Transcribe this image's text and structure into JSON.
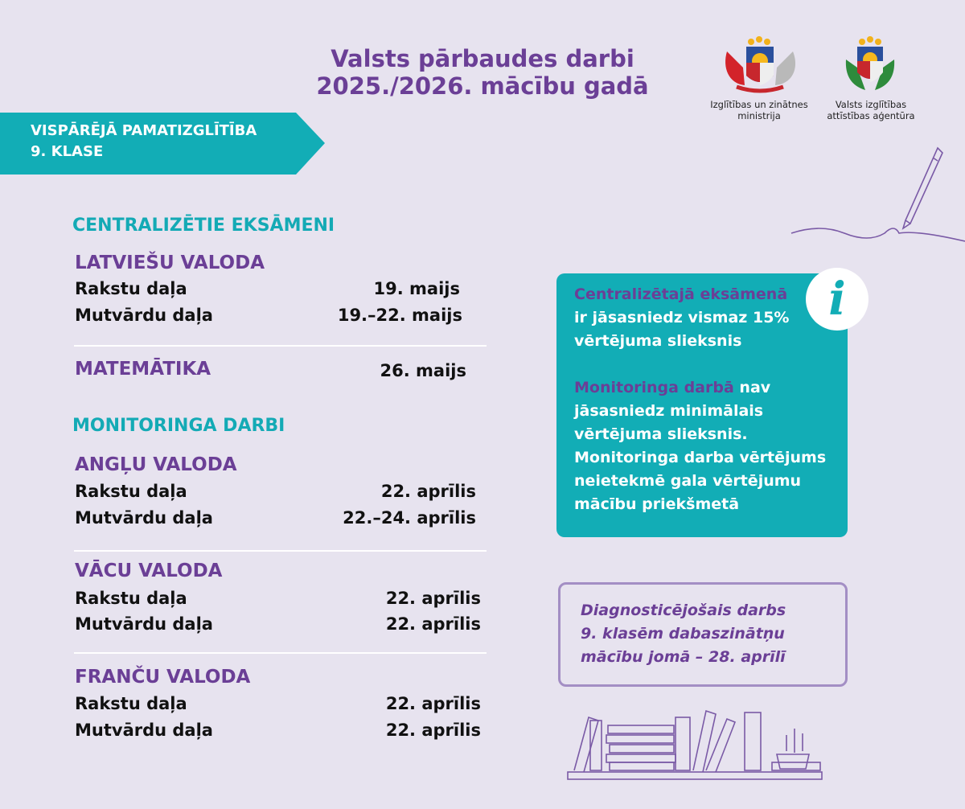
{
  "header": {
    "title_line1": "Valsts pārbaudes darbi",
    "title_line2": "2025./2026. mācību gadā"
  },
  "logos": [
    {
      "name": "Izglītības un zinātnes ministrija",
      "line1": "Izglītības un zinātnes",
      "line2": "ministrija"
    },
    {
      "name": "Valsts izglītības attīstības aģentūra",
      "line1": "Valsts izglītības",
      "line2": "attīstības aģentūra"
    }
  ],
  "banner": {
    "line1": "VISPĀRĒJĀ PAMATIZGLĪTĪBA",
    "line2": "9. KLASE"
  },
  "centralized": {
    "heading": "CENTRALIZĒTIE EKSĀMENI",
    "latvian": {
      "title": "LATVIEŠU VALODA",
      "rows": [
        {
          "label": "Rakstu daļa",
          "date": "19. maijs"
        },
        {
          "label": "Mutvārdu daļa",
          "date": "19.–22. maijs"
        }
      ]
    },
    "math": {
      "title": "MATEMĀTIKA",
      "date": "26. maijs"
    }
  },
  "monitoring": {
    "heading": "MONITORINGA DARBI",
    "english": {
      "title": "ANGĻU VALODA",
      "rows": [
        {
          "label": "Rakstu daļa",
          "date": "22. aprīlis"
        },
        {
          "label": "Mutvārdu daļa",
          "date": "22.–24. aprīlis"
        }
      ]
    },
    "german": {
      "title": "VĀCU VALODA",
      "rows": [
        {
          "label": "Rakstu daļa",
          "date": "22. aprīlis"
        },
        {
          "label": "Mutvārdu daļa",
          "date": "22. aprīlis"
        }
      ]
    },
    "french": {
      "title": "FRANČU VALODA",
      "rows": [
        {
          "label": "Rakstu daļa",
          "date": "22. aprīlis"
        },
        {
          "label": "Mutvārdu daļa",
          "date": "22. aprīlis"
        }
      ]
    }
  },
  "info": {
    "icon": "info-icon",
    "icon_glyph": "i",
    "p1_highlight": "Centralizētajā eksāmenā",
    "p1_line2": "ir jāsasniedz vismaz 15%",
    "p1_line3": "vērtējuma slieksnis",
    "p2_highlight": "Monitoringa darbā",
    "p2_rest": " nav",
    "p2_line2": "jāsasniedz minimālais",
    "p2_line3": "vērtējuma slieksnis.",
    "p2_line4": "Monitoringa darba vērtējums",
    "p2_line5": "neietekmē gala vērtējumu",
    "p2_line6": "mācību priekšmetā"
  },
  "diagnostic": {
    "line1": "Diagnosticējošais darbs",
    "line2": "9. klasēm dabaszinātņu",
    "line3": "mācību jomā – 28. aprīlī"
  },
  "colors": {
    "background": "#e7e3ef",
    "purple": "#6b3f96",
    "teal": "#12adb6",
    "border": "#a38ec4"
  }
}
